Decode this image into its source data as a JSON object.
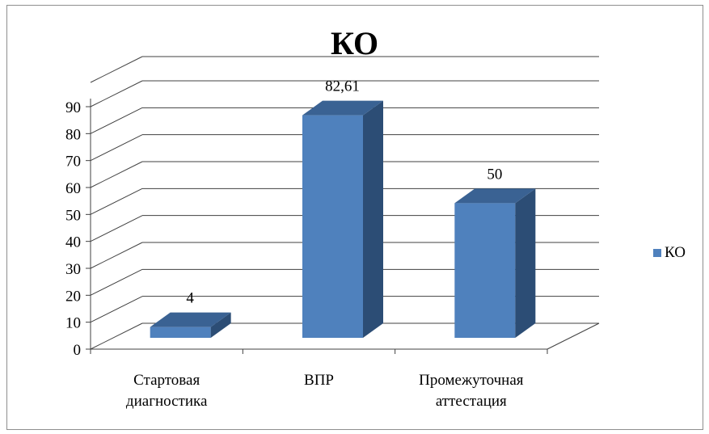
{
  "chart_data": {
    "type": "bar",
    "title": "КО",
    "categories": [
      "Стартовая диагностика",
      "ВПР",
      "Промежуточная аттестация"
    ],
    "category_lines": [
      [
        "Стартовая",
        "диагностика"
      ],
      [
        "ВПР"
      ],
      [
        "Промежуточная",
        "аттестация"
      ]
    ],
    "series": [
      {
        "name": "КО",
        "values": [
          4,
          82.61,
          50
        ],
        "data_labels": [
          "4",
          "82,61",
          "50"
        ]
      }
    ],
    "y_ticks": [
      "0",
      "10",
      "20",
      "30",
      "40",
      "50",
      "60",
      "70",
      "80",
      "90"
    ],
    "ylim": [
      0,
      90
    ],
    "grid": true,
    "legend_position": "right",
    "colors": {
      "front": "#4f81bd",
      "side": "#2c4d75",
      "top": "#3a6293",
      "grid": "#404040"
    }
  }
}
